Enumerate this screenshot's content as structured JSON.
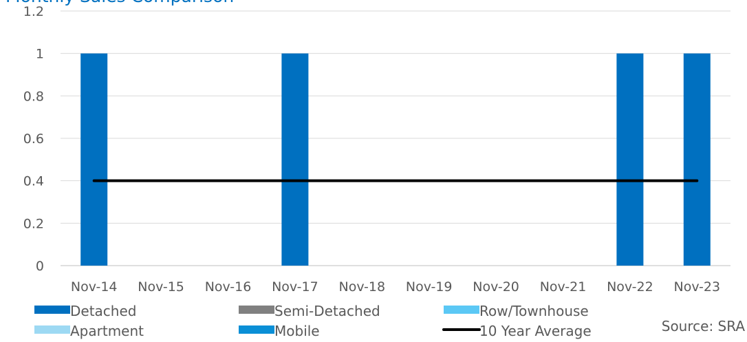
{
  "chart_data": {
    "type": "bar",
    "title": "Monthly Sales Comparison",
    "categories": [
      "Nov-14",
      "Nov-15",
      "Nov-16",
      "Nov-17",
      "Nov-18",
      "Nov-19",
      "Nov-20",
      "Nov-21",
      "Nov-22",
      "Nov-23"
    ],
    "series": [
      {
        "name": "Detached",
        "type": "bar",
        "color": "#0070c0",
        "values": [
          1,
          0,
          0,
          1,
          0,
          0,
          0,
          0,
          1,
          1
        ]
      },
      {
        "name": "Semi-Detached",
        "type": "bar",
        "color": "#808080",
        "values": [
          0,
          0,
          0,
          0,
          0,
          0,
          0,
          0,
          0,
          0
        ]
      },
      {
        "name": "Row/Townhouse",
        "type": "bar",
        "color": "#5bc8f5",
        "values": [
          0,
          0,
          0,
          0,
          0,
          0,
          0,
          0,
          0,
          0
        ]
      },
      {
        "name": "Apartment",
        "type": "bar",
        "color": "#9dd9f3",
        "values": [
          0,
          0,
          0,
          0,
          0,
          0,
          0,
          0,
          0,
          0
        ]
      },
      {
        "name": "Mobile",
        "type": "bar",
        "color": "#0a8fd6",
        "values": [
          0,
          0,
          0,
          0,
          0,
          0,
          0,
          0,
          0,
          0
        ]
      },
      {
        "name": "10 Year Average",
        "type": "line",
        "color": "#000000",
        "values": [
          0.4,
          0.4,
          0.4,
          0.4,
          0.4,
          0.4,
          0.4,
          0.4,
          0.4,
          0.4
        ]
      }
    ],
    "ylim": [
      0,
      1.2
    ],
    "yticks": [
      "0",
      "0.2",
      "0.4",
      "0.6",
      "0.8",
      "1",
      "1.2"
    ],
    "grid": true,
    "legend_position": "bottom",
    "source": "Source: SRA"
  }
}
